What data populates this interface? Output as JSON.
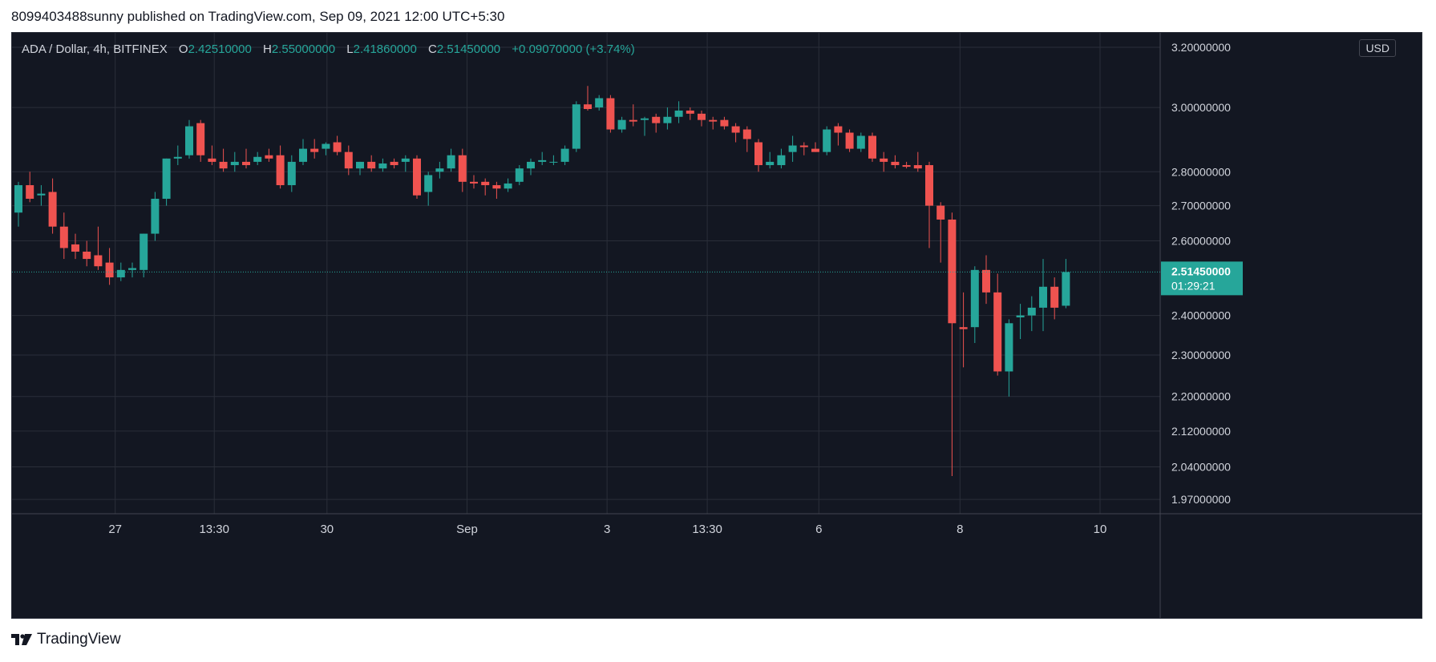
{
  "header": {
    "publish_text": "8099403488sunny published on TradingView.com, Sep 09, 2021 12:00 UTC+5:30"
  },
  "legend": {
    "symbol": "ADA / Dollar, 4h, BITFINEX",
    "o_label": "O",
    "o_value": "2.42510000",
    "h_label": "H",
    "h_value": "2.55000000",
    "l_label": "L",
    "l_value": "2.41860000",
    "c_label": "C",
    "c_value": "2.51450000",
    "change": "+0.09070000 (+3.74%)"
  },
  "currency_badge": "USD",
  "footer": {
    "brand": "TradingView"
  },
  "colors": {
    "background": "#131722",
    "grid": "#2a2e39",
    "up": "#26a69a",
    "down": "#ef5350",
    "text": "#d1d4dc"
  },
  "chart_data": {
    "type": "candlestick",
    "symbol": "ADA / Dollar",
    "interval": "4h",
    "exchange": "BITFINEX",
    "y_axis": {
      "scale": "log",
      "ylim": [
        1.94,
        3.25
      ],
      "tick_labels": [
        "3.20000000",
        "3.00000000",
        "2.80000000",
        "2.70000000",
        "2.60000000",
        "2.40000000",
        "2.30000000",
        "2.20000000",
        "2.12000000",
        "2.04000000",
        "1.97000000"
      ]
    },
    "x_axis": {
      "tick_labels": [
        {
          "label": "27",
          "index": 8.5
        },
        {
          "label": "13:30",
          "index": 17.2
        },
        {
          "label": "30",
          "index": 27.1
        },
        {
          "label": "Sep",
          "index": 39.4
        },
        {
          "label": "3",
          "index": 51.7
        },
        {
          "label": "13:30",
          "index": 60.5
        },
        {
          "label": "6",
          "index": 70.3
        },
        {
          "label": "8",
          "index": 82.7
        },
        {
          "label": "10",
          "index": 95.0
        }
      ]
    },
    "current_price": {
      "value": "2.51450000",
      "countdown": "01:29:21"
    },
    "candles": [
      {
        "o": 2.68,
        "h": 2.77,
        "l": 2.64,
        "c": 2.76
      },
      {
        "o": 2.76,
        "h": 2.8,
        "l": 2.71,
        "c": 2.72
      },
      {
        "o": 2.73,
        "h": 2.76,
        "l": 2.7,
        "c": 2.735
      },
      {
        "o": 2.74,
        "h": 2.78,
        "l": 2.62,
        "c": 2.64
      },
      {
        "o": 2.64,
        "h": 2.68,
        "l": 2.55,
        "c": 2.58
      },
      {
        "o": 2.59,
        "h": 2.62,
        "l": 2.55,
        "c": 2.57
      },
      {
        "o": 2.57,
        "h": 2.6,
        "l": 2.53,
        "c": 2.55
      },
      {
        "o": 2.56,
        "h": 2.64,
        "l": 2.52,
        "c": 2.53
      },
      {
        "o": 2.54,
        "h": 2.58,
        "l": 2.48,
        "c": 2.5
      },
      {
        "o": 2.5,
        "h": 2.54,
        "l": 2.49,
        "c": 2.52
      },
      {
        "o": 2.52,
        "h": 2.54,
        "l": 2.5,
        "c": 2.525
      },
      {
        "o": 2.52,
        "h": 2.62,
        "l": 2.5,
        "c": 2.62
      },
      {
        "o": 2.62,
        "h": 2.74,
        "l": 2.6,
        "c": 2.72
      },
      {
        "o": 2.72,
        "h": 2.84,
        "l": 2.7,
        "c": 2.84
      },
      {
        "o": 2.84,
        "h": 2.88,
        "l": 2.82,
        "c": 2.845
      },
      {
        "o": 2.85,
        "h": 2.96,
        "l": 2.84,
        "c": 2.94
      },
      {
        "o": 2.95,
        "h": 2.96,
        "l": 2.83,
        "c": 2.85
      },
      {
        "o": 2.84,
        "h": 2.88,
        "l": 2.82,
        "c": 2.83
      },
      {
        "o": 2.83,
        "h": 2.87,
        "l": 2.8,
        "c": 2.81
      },
      {
        "o": 2.82,
        "h": 2.86,
        "l": 2.8,
        "c": 2.83
      },
      {
        "o": 2.83,
        "h": 2.87,
        "l": 2.81,
        "c": 2.82
      },
      {
        "o": 2.83,
        "h": 2.86,
        "l": 2.82,
        "c": 2.845
      },
      {
        "o": 2.85,
        "h": 2.87,
        "l": 2.83,
        "c": 2.84
      },
      {
        "o": 2.85,
        "h": 2.88,
        "l": 2.75,
        "c": 2.76
      },
      {
        "o": 2.76,
        "h": 2.85,
        "l": 2.74,
        "c": 2.83
      },
      {
        "o": 2.83,
        "h": 2.9,
        "l": 2.82,
        "c": 2.87
      },
      {
        "o": 2.87,
        "h": 2.9,
        "l": 2.84,
        "c": 2.86
      },
      {
        "o": 2.87,
        "h": 2.89,
        "l": 2.85,
        "c": 2.885
      },
      {
        "o": 2.89,
        "h": 2.91,
        "l": 2.85,
        "c": 2.86
      },
      {
        "o": 2.86,
        "h": 2.88,
        "l": 2.79,
        "c": 2.81
      },
      {
        "o": 2.81,
        "h": 2.83,
        "l": 2.79,
        "c": 2.83
      },
      {
        "o": 2.83,
        "h": 2.85,
        "l": 2.8,
        "c": 2.81
      },
      {
        "o": 2.81,
        "h": 2.84,
        "l": 2.8,
        "c": 2.825
      },
      {
        "o": 2.83,
        "h": 2.84,
        "l": 2.81,
        "c": 2.82
      },
      {
        "o": 2.83,
        "h": 2.85,
        "l": 2.8,
        "c": 2.84
      },
      {
        "o": 2.84,
        "h": 2.85,
        "l": 2.72,
        "c": 2.73
      },
      {
        "o": 2.74,
        "h": 2.8,
        "l": 2.7,
        "c": 2.79
      },
      {
        "o": 2.8,
        "h": 2.83,
        "l": 2.78,
        "c": 2.81
      },
      {
        "o": 2.81,
        "h": 2.87,
        "l": 2.8,
        "c": 2.85
      },
      {
        "o": 2.85,
        "h": 2.87,
        "l": 2.74,
        "c": 2.77
      },
      {
        "o": 2.77,
        "h": 2.79,
        "l": 2.75,
        "c": 2.765
      },
      {
        "o": 2.77,
        "h": 2.78,
        "l": 2.73,
        "c": 2.76
      },
      {
        "o": 2.76,
        "h": 2.77,
        "l": 2.72,
        "c": 2.75
      },
      {
        "o": 2.75,
        "h": 2.78,
        "l": 2.74,
        "c": 2.765
      },
      {
        "o": 2.77,
        "h": 2.82,
        "l": 2.76,
        "c": 2.81
      },
      {
        "o": 2.81,
        "h": 2.84,
        "l": 2.79,
        "c": 2.83
      },
      {
        "o": 2.83,
        "h": 2.86,
        "l": 2.82,
        "c": 2.835
      },
      {
        "o": 2.83,
        "h": 2.85,
        "l": 2.82,
        "c": 2.83
      },
      {
        "o": 2.83,
        "h": 2.88,
        "l": 2.82,
        "c": 2.87
      },
      {
        "o": 2.87,
        "h": 3.02,
        "l": 2.86,
        "c": 3.01
      },
      {
        "o": 3.01,
        "h": 3.07,
        "l": 2.99,
        "c": 2.995
      },
      {
        "o": 3.0,
        "h": 3.04,
        "l": 2.99,
        "c": 3.03
      },
      {
        "o": 3.03,
        "h": 3.04,
        "l": 2.92,
        "c": 2.93
      },
      {
        "o": 2.93,
        "h": 2.97,
        "l": 2.92,
        "c": 2.96
      },
      {
        "o": 2.96,
        "h": 3.01,
        "l": 2.94,
        "c": 2.955
      },
      {
        "o": 2.96,
        "h": 2.97,
        "l": 2.91,
        "c": 2.965
      },
      {
        "o": 2.97,
        "h": 2.98,
        "l": 2.92,
        "c": 2.95
      },
      {
        "o": 2.95,
        "h": 3.0,
        "l": 2.93,
        "c": 2.97
      },
      {
        "o": 2.97,
        "h": 3.02,
        "l": 2.95,
        "c": 2.99
      },
      {
        "o": 2.99,
        "h": 3.0,
        "l": 2.96,
        "c": 2.98
      },
      {
        "o": 2.98,
        "h": 2.99,
        "l": 2.94,
        "c": 2.96
      },
      {
        "o": 2.96,
        "h": 2.97,
        "l": 2.93,
        "c": 2.955
      },
      {
        "o": 2.96,
        "h": 2.97,
        "l": 2.93,
        "c": 2.94
      },
      {
        "o": 2.94,
        "h": 2.95,
        "l": 2.89,
        "c": 2.92
      },
      {
        "o": 2.93,
        "h": 2.94,
        "l": 2.86,
        "c": 2.9
      },
      {
        "o": 2.89,
        "h": 2.9,
        "l": 2.8,
        "c": 2.82
      },
      {
        "o": 2.82,
        "h": 2.86,
        "l": 2.81,
        "c": 2.83
      },
      {
        "o": 2.82,
        "h": 2.87,
        "l": 2.81,
        "c": 2.85
      },
      {
        "o": 2.86,
        "h": 2.91,
        "l": 2.83,
        "c": 2.88
      },
      {
        "o": 2.88,
        "h": 2.89,
        "l": 2.85,
        "c": 2.875
      },
      {
        "o": 2.87,
        "h": 2.89,
        "l": 2.86,
        "c": 2.86
      },
      {
        "o": 2.86,
        "h": 2.94,
        "l": 2.85,
        "c": 2.93
      },
      {
        "o": 2.94,
        "h": 2.95,
        "l": 2.88,
        "c": 2.92
      },
      {
        "o": 2.92,
        "h": 2.93,
        "l": 2.86,
        "c": 2.87
      },
      {
        "o": 2.87,
        "h": 2.92,
        "l": 2.86,
        "c": 2.91
      },
      {
        "o": 2.91,
        "h": 2.92,
        "l": 2.83,
        "c": 2.84
      },
      {
        "o": 2.84,
        "h": 2.86,
        "l": 2.8,
        "c": 2.83
      },
      {
        "o": 2.83,
        "h": 2.85,
        "l": 2.81,
        "c": 2.82
      },
      {
        "o": 2.82,
        "h": 2.83,
        "l": 2.81,
        "c": 2.815
      },
      {
        "o": 2.82,
        "h": 2.86,
        "l": 2.8,
        "c": 2.81
      },
      {
        "o": 2.82,
        "h": 2.83,
        "l": 2.58,
        "c": 2.7
      },
      {
        "o": 2.7,
        "h": 2.71,
        "l": 2.54,
        "c": 2.66
      },
      {
        "o": 2.66,
        "h": 2.68,
        "l": 2.02,
        "c": 2.38
      },
      {
        "o": 2.37,
        "h": 2.46,
        "l": 2.27,
        "c": 2.365
      },
      {
        "o": 2.37,
        "h": 2.53,
        "l": 2.33,
        "c": 2.52
      },
      {
        "o": 2.52,
        "h": 2.56,
        "l": 2.43,
        "c": 2.46
      },
      {
        "o": 2.46,
        "h": 2.51,
        "l": 2.25,
        "c": 2.26
      },
      {
        "o": 2.26,
        "h": 2.39,
        "l": 2.2,
        "c": 2.38
      },
      {
        "o": 2.395,
        "h": 2.43,
        "l": 2.34,
        "c": 2.4
      },
      {
        "o": 2.4,
        "h": 2.45,
        "l": 2.36,
        "c": 2.42
      },
      {
        "o": 2.42,
        "h": 2.55,
        "l": 2.36,
        "c": 2.475
      },
      {
        "o": 2.475,
        "h": 2.5,
        "l": 2.39,
        "c": 2.42
      },
      {
        "o": 2.4251,
        "h": 2.55,
        "l": 2.4186,
        "c": 2.5145
      }
    ]
  }
}
